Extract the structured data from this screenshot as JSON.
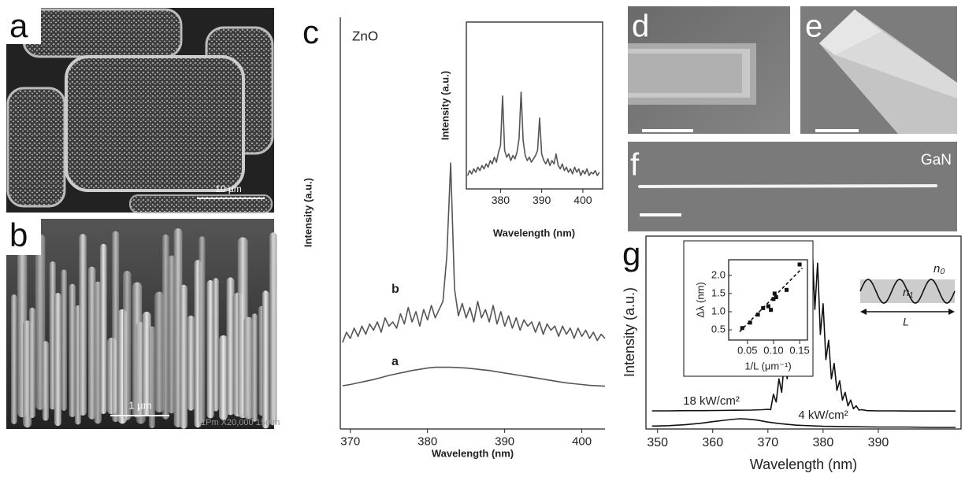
{
  "panels": {
    "a": {
      "label": "a",
      "scale": "10 µm"
    },
    "b": {
      "label": "b",
      "scale": "1 µm",
      "info": "1Pm  X20,000 15mm"
    },
    "c": {
      "label": "c"
    },
    "d": {
      "label": "d"
    },
    "e": {
      "label": "e"
    },
    "f": {
      "label": "f",
      "material": "GaN"
    },
    "g": {
      "label": "g"
    }
  },
  "cavity": {
    "outer": "n₀",
    "inner": "n₁",
    "length": "L"
  },
  "chart_data": [
    {
      "type": "line",
      "annotation": "ZnO",
      "x_label": "Wavelength (nm)",
      "y_label": "Intensity (a.u.)",
      "xlim": [
        368.7,
        403
      ],
      "ylim": [
        0,
        10
      ],
      "xticks": [
        370,
        380,
        390,
        400
      ],
      "series": [
        {
          "name": "a",
          "color": "#555555",
          "x": [
            369,
            370,
            371,
            372,
            373,
            374,
            375,
            376,
            377,
            378,
            379,
            380,
            381,
            382,
            383,
            384,
            385,
            386,
            387,
            388,
            389,
            390,
            391,
            392,
            393,
            394,
            395,
            396,
            397,
            398,
            399,
            400,
            401,
            402,
            403
          ],
          "values": [
            1.05,
            1.08,
            1.12,
            1.16,
            1.2,
            1.25,
            1.3,
            1.34,
            1.38,
            1.42,
            1.45,
            1.48,
            1.5,
            1.5,
            1.5,
            1.49,
            1.48,
            1.46,
            1.44,
            1.42,
            1.39,
            1.36,
            1.33,
            1.3,
            1.27,
            1.24,
            1.21,
            1.18,
            1.15,
            1.12,
            1.1,
            1.08,
            1.06,
            1.05,
            1.04
          ]
        },
        {
          "name": "b",
          "color": "#555555",
          "x": [
            369,
            369.5,
            370,
            370.5,
            371,
            371.5,
            372,
            372.5,
            373,
            373.5,
            374,
            374.5,
            375,
            375.5,
            376,
            376.5,
            377,
            377.5,
            378,
            378.5,
            379,
            379.5,
            380,
            380.5,
            381,
            381.5,
            382,
            382.5,
            383,
            383.5,
            384,
            384.5,
            385,
            385.5,
            386,
            386.5,
            387,
            387.5,
            388,
            388.5,
            389,
            389.5,
            390,
            390.5,
            391,
            391.5,
            392,
            392.5,
            393,
            393.5,
            394,
            394.5,
            395,
            395.5,
            396,
            396.5,
            397,
            397.5,
            398,
            398.5,
            399,
            399.5,
            400,
            400.5,
            401,
            401.5,
            402,
            402.5,
            403
          ],
          "values": [
            2.1,
            2.35,
            2.2,
            2.45,
            2.25,
            2.5,
            2.3,
            2.55,
            2.4,
            2.6,
            2.35,
            2.7,
            2.5,
            2.6,
            2.45,
            2.8,
            2.55,
            2.95,
            2.6,
            2.85,
            2.5,
            2.9,
            2.65,
            3.0,
            2.7,
            2.9,
            3.1,
            4.2,
            6.46,
            3.4,
            2.75,
            3.05,
            2.7,
            2.95,
            2.6,
            3.1,
            2.7,
            2.9,
            2.6,
            3.0,
            2.55,
            2.85,
            2.5,
            2.75,
            2.45,
            2.7,
            2.4,
            2.65,
            2.5,
            2.6,
            2.35,
            2.6,
            2.3,
            2.55,
            2.4,
            2.5,
            2.25,
            2.5,
            2.3,
            2.45,
            2.2,
            2.45,
            2.25,
            2.4,
            2.2,
            2.35,
            2.15,
            2.3,
            2.2
          ]
        }
      ]
    },
    {
      "type": "line",
      "x_label": "Wavelength (nm)",
      "y_label": "Intensity (a.u.)",
      "xlim": [
        371.7,
        404.8
      ],
      "ylim": [
        0,
        10
      ],
      "xticks": [
        380,
        390,
        400
      ],
      "series": [
        {
          "color": "#555555",
          "x": [
            372,
            372.5,
            373,
            373.5,
            374,
            374.5,
            375,
            375.5,
            376,
            376.5,
            377,
            377.5,
            378,
            378.5,
            379,
            379.5,
            380,
            380.5,
            381,
            381.5,
            382,
            382.5,
            383,
            383.5,
            384,
            384.5,
            385,
            385.5,
            386,
            386.5,
            387,
            387.5,
            388,
            388.5,
            389,
            389.5,
            390,
            390.5,
            391,
            391.5,
            392,
            392.5,
            393,
            393.5,
            394,
            394.5,
            395,
            395.5,
            396,
            396.5,
            397,
            397.5,
            398,
            398.5,
            399,
            399.5,
            400,
            400.5,
            401,
            401.5,
            402,
            402.5,
            403,
            403.5,
            404
          ],
          "values": [
            0.8,
            1.1,
            0.9,
            1.2,
            1.0,
            1.3,
            1.1,
            1.4,
            1.2,
            1.5,
            1.3,
            1.7,
            1.5,
            1.9,
            1.6,
            2.2,
            2.6,
            5.57,
            2.3,
            1.9,
            2.1,
            1.7,
            2.0,
            1.8,
            2.2,
            3.0,
            5.8,
            2.9,
            2.0,
            1.7,
            1.9,
            1.6,
            1.8,
            2.0,
            2.3,
            4.25,
            2.1,
            1.7,
            1.5,
            1.8,
            1.4,
            1.7,
            1.5,
            2.1,
            1.4,
            1.2,
            1.5,
            1.1,
            1.3,
            1.0,
            1.2,
            0.9,
            1.3,
            1.0,
            1.2,
            0.8,
            1.1,
            0.9,
            1.2,
            0.8,
            1.0,
            0.9,
            1.1,
            0.8,
            1.0
          ]
        }
      ]
    },
    {
      "type": "line",
      "x_label": "Wavelength (nm)",
      "y_label": "Intensity (a.u.)",
      "xlim": [
        347.9,
        405
      ],
      "ylim": [
        0,
        10
      ],
      "xticks": [
        350,
        360,
        370,
        380,
        390
      ],
      "series": [
        {
          "name": "18 kW/cm²",
          "color": "#111111",
          "x": [
            349,
            352,
            355,
            358,
            361,
            364,
            367,
            369,
            370,
            370.5,
            371,
            371.5,
            372,
            372.5,
            373,
            373.5,
            374,
            374.5,
            375,
            375.5,
            376,
            376.5,
            377,
            377.5,
            378,
            378.5,
            379,
            379.5,
            380,
            380.5,
            381,
            381.5,
            382,
            382.5,
            383,
            383.5,
            384,
            384.5,
            385,
            385.5,
            386,
            386.5,
            387,
            388,
            390,
            393,
            396,
            399,
            402,
            404
          ],
          "values": [
            0.94,
            0.94,
            0.95,
            0.95,
            0.96,
            0.97,
            0.98,
            1.0,
            1.02,
            1.0,
            1.8,
            1.4,
            2.6,
            1.9,
            3.6,
            2.6,
            5.0,
            3.6,
            6.7,
            4.8,
            8.2,
            6.0,
            9.4,
            6.6,
            9.67,
            6.2,
            8.6,
            4.9,
            6.5,
            3.6,
            4.6,
            2.6,
            3.4,
            2.0,
            2.5,
            1.5,
            1.9,
            1.2,
            1.5,
            1.05,
            1.2,
            0.98,
            1.0,
            0.95,
            0.94,
            0.94,
            0.93,
            0.93,
            0.93,
            0.93
          ]
        },
        {
          "name": "4 kW/cm²",
          "color": "#111111",
          "x": [
            349,
            352,
            355,
            358,
            360,
            362,
            364,
            365,
            366,
            368,
            370,
            372,
            375,
            380,
            385,
            390,
            395,
            400,
            404
          ],
          "values": [
            0.15,
            0.17,
            0.22,
            0.3,
            0.38,
            0.45,
            0.51,
            0.53,
            0.52,
            0.46,
            0.36,
            0.28,
            0.2,
            0.14,
            0.12,
            0.1,
            0.1,
            0.08,
            0.08
          ]
        }
      ]
    },
    {
      "type": "scatter",
      "x_label": "1/L (μm⁻¹)",
      "y_label": "Δλ (nm)",
      "xlim": [
        0.014,
        0.165
      ],
      "ylim": [
        0.22,
        2.43
      ],
      "xticks": [
        0.05,
        {
          "value": 0.1,
          "label": "0.10"
        },
        0.15
      ],
      "yticks": [
        0.5,
        {
          "value": 1,
          "label": "1.0"
        },
        1.5,
        {
          "value": 2,
          "label": "2.0"
        }
      ],
      "series": [
        {
          "color": "#111111",
          "x": [
            0.04,
            0.055,
            0.07,
            0.08,
            0.09,
            0.095,
            0.1,
            0.102,
            0.105,
            0.125,
            0.15
          ],
          "values": [
            0.55,
            0.7,
            0.92,
            1.1,
            1.15,
            1.05,
            1.35,
            1.5,
            1.4,
            1.6,
            2.3
          ]
        },
        {
          "color": "#111111",
          "style": "dashed",
          "x": [
            0.035,
            0.155
          ],
          "values": [
            0.45,
            2.2
          ]
        }
      ]
    }
  ]
}
